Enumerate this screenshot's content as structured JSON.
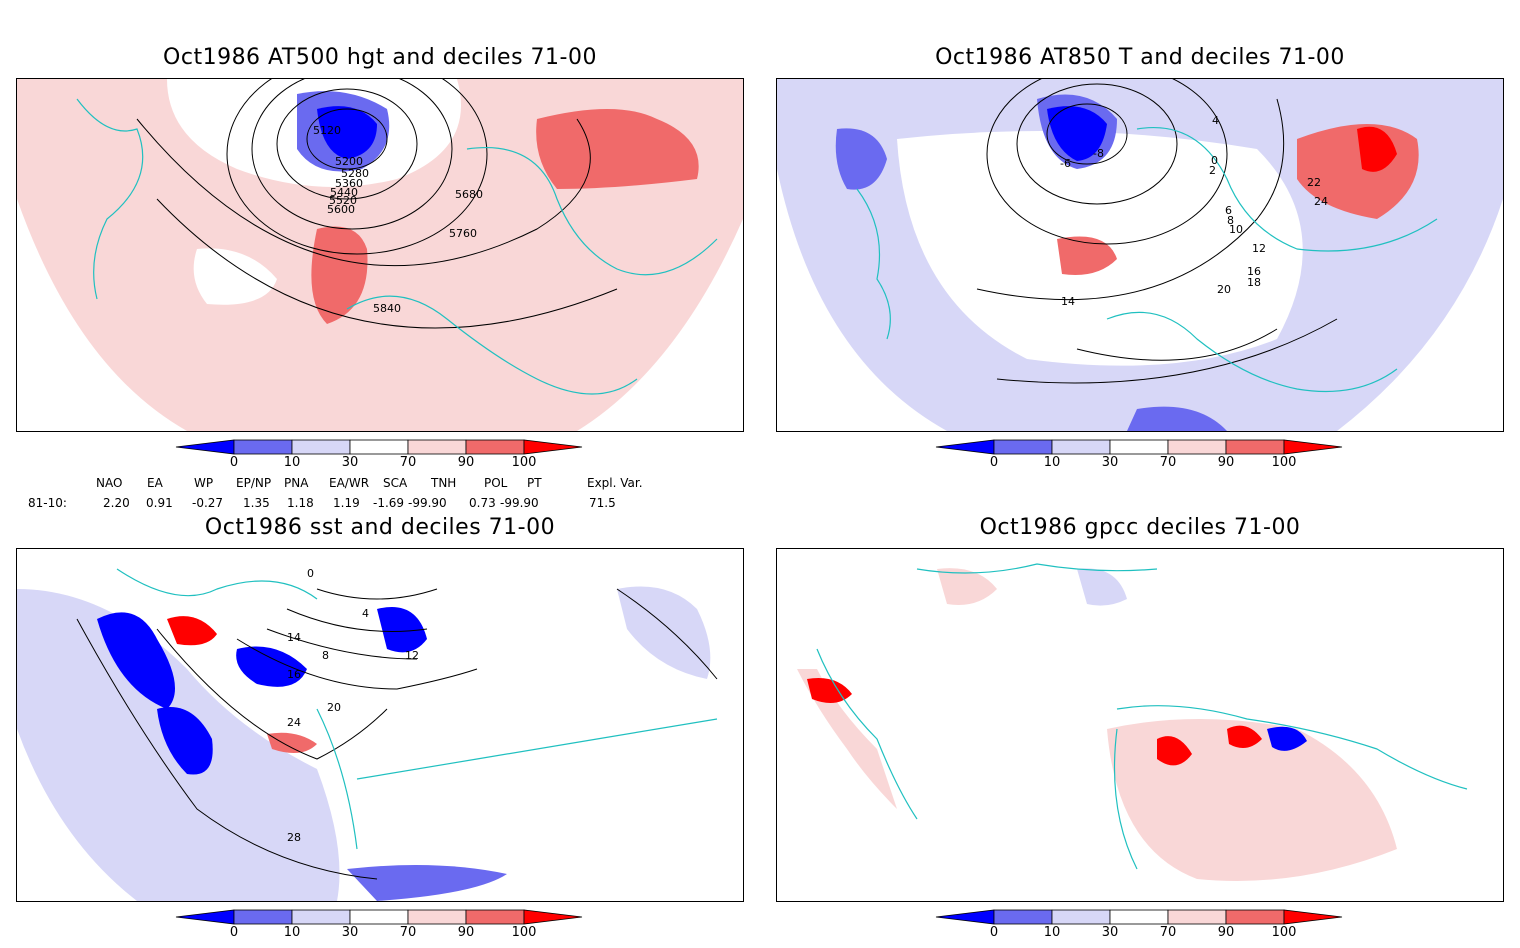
{
  "panels": [
    {
      "title": "Oct1986 AT500 hgt and deciles 71-00",
      "contour_labels": [
        "5120",
        "5200",
        "5280",
        "5360",
        "5440",
        "5520",
        "5600",
        "5680",
        "5760",
        "5840"
      ]
    },
    {
      "title": "Oct1986 AT850 T and deciles 71-00",
      "contour_labels": [
        "-6",
        "-8",
        "0",
        "2",
        "4",
        "6",
        "8",
        "10",
        "12",
        "14",
        "16",
        "18",
        "20",
        "22",
        "24"
      ]
    },
    {
      "title": "Oct1986 sst and deciles 71-00",
      "contour_labels": [
        "0",
        "4",
        "8",
        "12",
        "14",
        "16",
        "20",
        "24",
        "28"
      ]
    },
    {
      "title": "Oct1986 gpcc deciles 71-00",
      "contour_labels": []
    }
  ],
  "colorbar": {
    "ticks": [
      "0",
      "10",
      "30",
      "70",
      "90",
      "100"
    ],
    "colors": [
      "#0000ff",
      "#6a6af0",
      "#d7d7f7",
      "#ffffff",
      "#f9d7d7",
      "#f06a6a",
      "#ff0000"
    ]
  },
  "indices": {
    "headers": [
      "NAO",
      "EA",
      "WP",
      "EP/NP",
      "PNA",
      "EA/WR",
      "SCA",
      "TNH",
      "POL",
      "PT",
      "Expl. Var."
    ],
    "row_label": "81-10:",
    "values": [
      "2.20",
      "0.91",
      "-0.27",
      "1.35",
      "1.18",
      "1.19",
      "-1.69",
      "-99.90",
      "0.73",
      "-99.90",
      "71.5"
    ]
  }
}
